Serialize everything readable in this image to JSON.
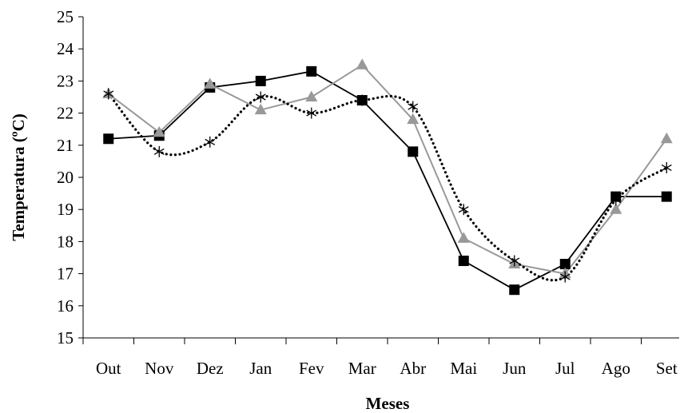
{
  "chart_data": {
    "type": "line",
    "title": "",
    "xlabel": "Meses",
    "ylabel": "Temperatura (ºC)",
    "categories": [
      "Out",
      "Nov",
      "Dez",
      "Jan",
      "Fev",
      "Mar",
      "Abr",
      "Mai",
      "Jun",
      "Jul",
      "Ago",
      "Set"
    ],
    "ylim": [
      15,
      25
    ],
    "yticks": [
      "15",
      "16",
      "17",
      "18",
      "19",
      "20",
      "21",
      "22",
      "23",
      "24",
      "25"
    ],
    "grid": false,
    "legend": "none",
    "series": [
      {
        "marker": "square",
        "line_style": "solid",
        "color": "#000000",
        "values": [
          21.2,
          21.3,
          22.8,
          23.0,
          23.3,
          22.4,
          20.8,
          17.4,
          16.5,
          17.3,
          19.4,
          19.4
        ]
      },
      {
        "marker": "triangle",
        "line_style": "solid",
        "color": "#999999",
        "values": [
          22.6,
          21.4,
          22.9,
          22.1,
          22.5,
          23.5,
          21.8,
          18.1,
          17.3,
          17.0,
          19.0,
          21.2
        ]
      },
      {
        "marker": "asterisk",
        "line_style": "dotted",
        "color": "#000000",
        "values": [
          22.6,
          20.8,
          21.1,
          22.5,
          22.0,
          22.4,
          22.2,
          19.0,
          17.4,
          16.9,
          19.3,
          20.3
        ]
      }
    ]
  }
}
